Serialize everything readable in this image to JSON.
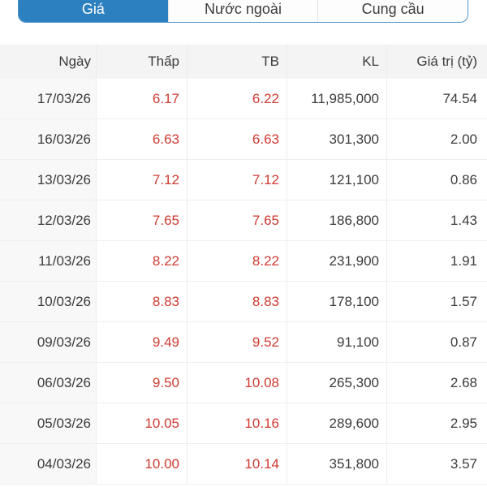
{
  "colors": {
    "accent_blue": "#2d80c0",
    "tab_border_blue": "#4e95cc",
    "negative_red": "#cf3a32",
    "text_dark": "#3b3b3d",
    "header_bg": "#f4f4f5",
    "date_col_bg": "#f8f8f8"
  },
  "tabs": [
    {
      "label": "Giá",
      "selected": true
    },
    {
      "label": "Nước ngoài",
      "selected": false
    },
    {
      "label": "Cung cầu",
      "selected": false
    }
  ],
  "table": {
    "columns": [
      "Ngày",
      "Thấp",
      "TB",
      "KL",
      "Giá trị (tỷ)"
    ],
    "rows": [
      [
        "17/03/26",
        "6.17",
        "6.22",
        "11,985,000",
        "74.54"
      ],
      [
        "16/03/26",
        "6.63",
        "6.63",
        "301,300",
        "2.00"
      ],
      [
        "13/03/26",
        "7.12",
        "7.12",
        "121,100",
        "0.86"
      ],
      [
        "12/03/26",
        "7.65",
        "7.65",
        "186,800",
        "1.43"
      ],
      [
        "11/03/26",
        "8.22",
        "8.22",
        "231,900",
        "1.91"
      ],
      [
        "10/03/26",
        "8.83",
        "8.83",
        "178,100",
        "1.57"
      ],
      [
        "09/03/26",
        "9.49",
        "9.52",
        "91,100",
        "0.87"
      ],
      [
        "06/03/26",
        "9.50",
        "10.08",
        "265,300",
        "2.68"
      ],
      [
        "05/03/26",
        "10.05",
        "10.16",
        "289,600",
        "2.95"
      ],
      [
        "04/03/26",
        "10.00",
        "10.14",
        "351,800",
        "3.57"
      ]
    ]
  }
}
